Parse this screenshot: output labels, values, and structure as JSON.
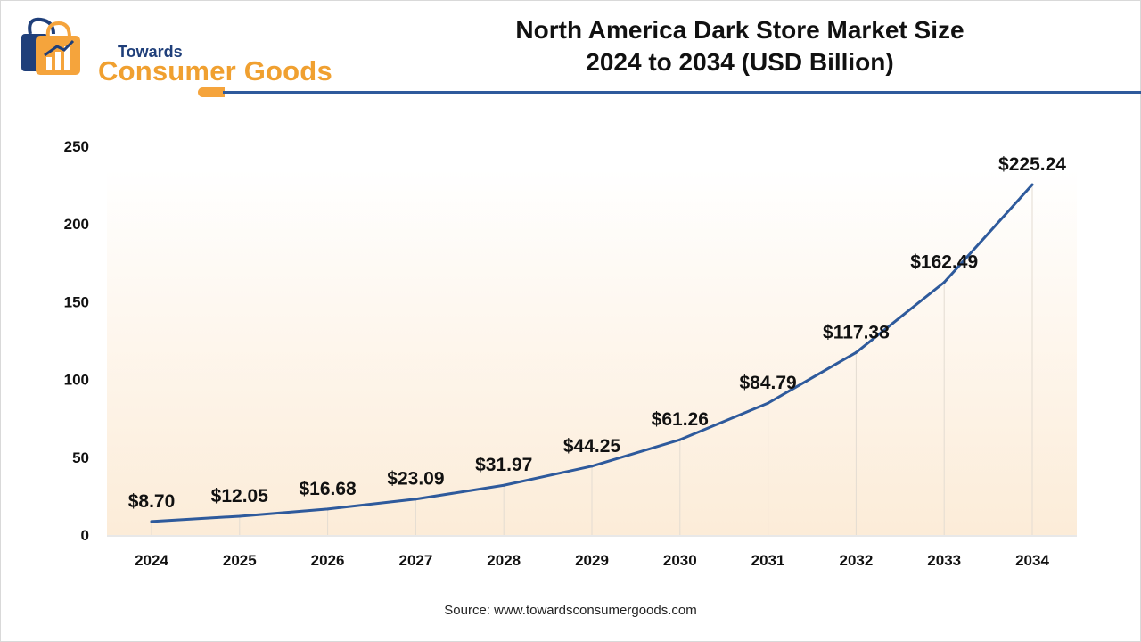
{
  "header": {
    "logo": {
      "line1": "Towards",
      "line2": "Consumer Goods"
    },
    "title_line1": "North America Dark Store Market Size",
    "title_line2": "2024 to 2034 (USD Billion)"
  },
  "colors": {
    "line": "#2e5a9c",
    "accent_orange": "#f5a43c",
    "bg_gradient_top": "#ffffff",
    "bg_gradient_bottom": "#fcecd8"
  },
  "chart_data": {
    "type": "line",
    "title": "North America Dark Store Market Size 2024 to 2034 (USD Billion)",
    "xlabel": "",
    "ylabel": "",
    "categories": [
      "2024",
      "2025",
      "2026",
      "2027",
      "2028",
      "2029",
      "2030",
      "2031",
      "2032",
      "2033",
      "2034"
    ],
    "values": [
      8.7,
      12.05,
      16.68,
      23.09,
      31.97,
      44.25,
      61.26,
      84.79,
      117.38,
      162.49,
      225.24
    ],
    "data_labels": [
      "$8.70",
      "$12.05",
      "$16.68",
      "$23.09",
      "$31.97",
      "$44.25",
      "$61.26",
      "$84.79",
      "$117.38",
      "$162.49",
      "$225.24"
    ],
    "yticks": [
      "0",
      "50",
      "100",
      "150",
      "200",
      "250"
    ],
    "ylim": [
      0,
      250
    ],
    "grid": "vertical"
  },
  "footer": {
    "source": "Source: www.towardsconsumergoods.com"
  }
}
